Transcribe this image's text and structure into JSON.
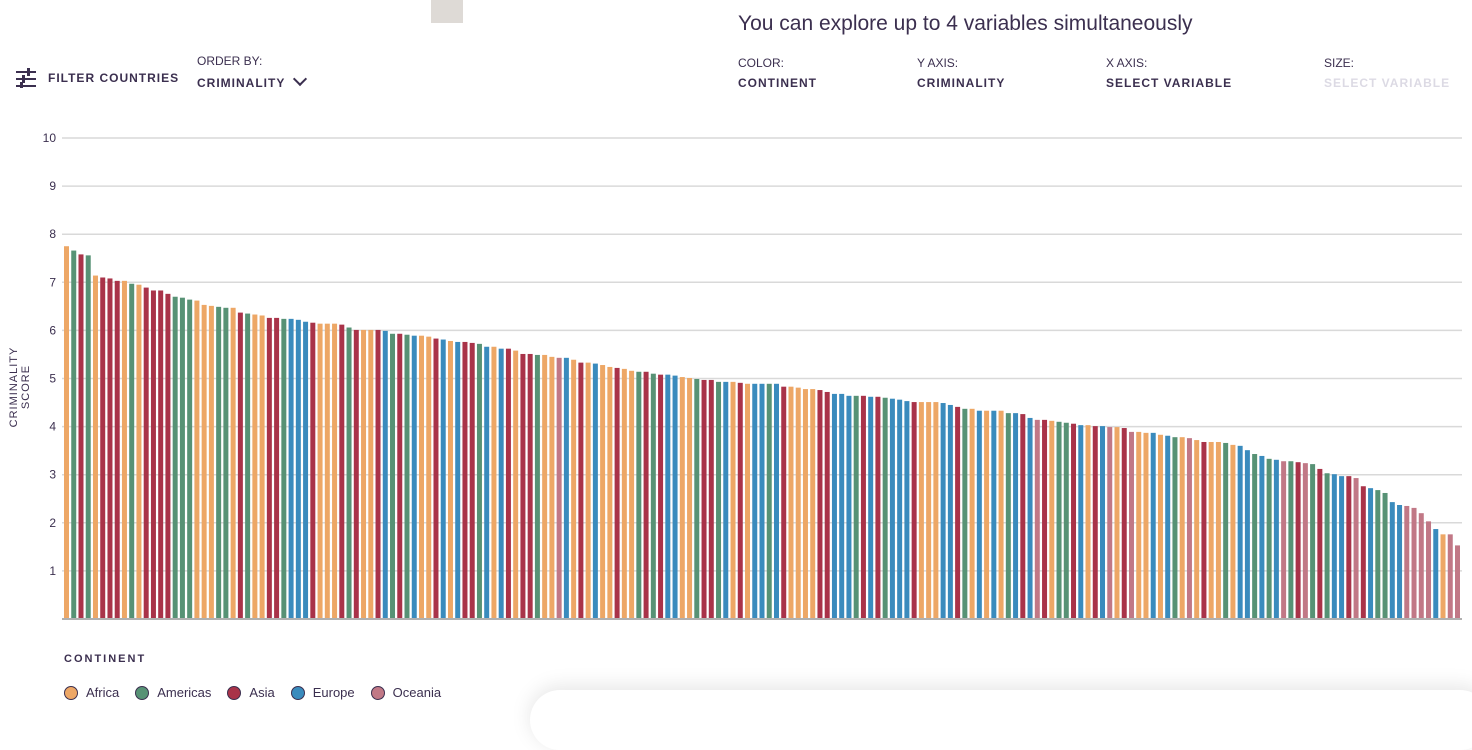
{
  "header": {
    "headline": "You can explore up to 4 variables simultaneously",
    "filter_label": "FILTER COUNTRIES",
    "order_by_label": "ORDER BY:",
    "order_by_value": "CRIMINALITY",
    "controls": [
      {
        "label": "COLOR:",
        "value": "CONTINENT",
        "disabled": false
      },
      {
        "label": "Y AXIS:",
        "value": "CRIMINALITY",
        "disabled": false
      },
      {
        "label": "X AXIS:",
        "value": "SELECT VARIABLE",
        "disabled": false
      },
      {
        "label": "SIZE:",
        "value": "SELECT VARIABLE",
        "disabled": true
      }
    ]
  },
  "chart_data": {
    "type": "bar",
    "ylabel": "CRIMINALITY SCORE",
    "ylim": [
      0,
      10
    ],
    "yticks": [
      "1",
      "2",
      "3",
      "4",
      "5",
      "6",
      "7",
      "8",
      "9",
      "10"
    ],
    "grid": true,
    "legend": {
      "title": "CONTINENT",
      "placement": "bottom-left",
      "entries": [
        {
          "name": "Africa",
          "color": "#EDA766"
        },
        {
          "name": "Americas",
          "color": "#579275"
        },
        {
          "name": "Asia",
          "color": "#A93349"
        },
        {
          "name": "Europe",
          "color": "#3A8BBD"
        },
        {
          "name": "Oceania",
          "color": "#C17886"
        }
      ]
    },
    "values": [
      7.75,
      7.66,
      7.58,
      7.56,
      7.14,
      7.1,
      7.08,
      7.03,
      7.03,
      6.97,
      6.95,
      6.89,
      6.83,
      6.83,
      6.76,
      6.7,
      6.68,
      6.64,
      6.62,
      6.53,
      6.51,
      6.49,
      6.47,
      6.47,
      6.37,
      6.35,
      6.33,
      6.31,
      6.26,
      6.26,
      6.24,
      6.24,
      6.22,
      6.18,
      6.16,
      6.14,
      6.14,
      6.14,
      6.12,
      6.06,
      6.01,
      6.01,
      6.01,
      6.01,
      5.99,
      5.93,
      5.93,
      5.91,
      5.89,
      5.89,
      5.87,
      5.83,
      5.81,
      5.78,
      5.76,
      5.76,
      5.74,
      5.72,
      5.66,
      5.66,
      5.62,
      5.62,
      5.58,
      5.51,
      5.51,
      5.49,
      5.49,
      5.45,
      5.43,
      5.43,
      5.39,
      5.33,
      5.33,
      5.31,
      5.28,
      5.24,
      5.22,
      5.2,
      5.16,
      5.14,
      5.14,
      5.1,
      5.08,
      5.08,
      5.06,
      5.03,
      5.01,
      4.99,
      4.97,
      4.97,
      4.93,
      4.93,
      4.93,
      4.91,
      4.89,
      4.89,
      4.89,
      4.89,
      4.89,
      4.83,
      4.83,
      4.81,
      4.78,
      4.78,
      4.76,
      4.72,
      4.68,
      4.68,
      4.64,
      4.64,
      4.64,
      4.62,
      4.62,
      4.6,
      4.58,
      4.56,
      4.53,
      4.51,
      4.51,
      4.51,
      4.51,
      4.49,
      4.45,
      4.41,
      4.37,
      4.37,
      4.33,
      4.33,
      4.33,
      4.33,
      4.28,
      4.28,
      4.26,
      4.18,
      4.14,
      4.14,
      4.12,
      4.1,
      4.08,
      4.06,
      4.03,
      4.03,
      4.01,
      4.01,
      3.99,
      3.99,
      3.97,
      3.89,
      3.89,
      3.87,
      3.87,
      3.83,
      3.81,
      3.78,
      3.78,
      3.76,
      3.72,
      3.68,
      3.68,
      3.68,
      3.66,
      3.62,
      3.6,
      3.51,
      3.43,
      3.39,
      3.33,
      3.31,
      3.28,
      3.28,
      3.26,
      3.24,
      3.22,
      3.12,
      3.03,
      3.01,
      2.97,
      2.97,
      2.93,
      2.76,
      2.72,
      2.68,
      2.62,
      2.43,
      2.37,
      2.35,
      2.31,
      2.2,
      2.03,
      1.87,
      1.76,
      1.76,
      1.53
    ],
    "continents": [
      "Africa",
      "Americas",
      "Asia",
      "Americas",
      "Africa",
      "Asia",
      "Asia",
      "Asia",
      "Africa",
      "Americas",
      "Africa",
      "Asia",
      "Asia",
      "Asia",
      "Asia",
      "Americas",
      "Americas",
      "Americas",
      "Africa",
      "Africa",
      "Africa",
      "Americas",
      "Americas",
      "Africa",
      "Asia",
      "Americas",
      "Africa",
      "Africa",
      "Asia",
      "Asia",
      "Americas",
      "Europe",
      "Europe",
      "Europe",
      "Asia",
      "Africa",
      "Africa",
      "Africa",
      "Asia",
      "Americas",
      "Asia",
      "Africa",
      "Africa",
      "Asia",
      "Europe",
      "Americas",
      "Asia",
      "Americas",
      "Europe",
      "Africa",
      "Africa",
      "Asia",
      "Europe",
      "Africa",
      "Europe",
      "Asia",
      "Asia",
      "Americas",
      "Europe",
      "Africa",
      "Europe",
      "Asia",
      "Africa",
      "Asia",
      "Asia",
      "Americas",
      "Africa",
      "Africa",
      "Oceania",
      "Europe",
      "Africa",
      "Asia",
      "Africa",
      "Europe",
      "Africa",
      "Africa",
      "Asia",
      "Africa",
      "Africa",
      "Americas",
      "Asia",
      "Americas",
      "Asia",
      "Europe",
      "Europe",
      "Africa",
      "Africa",
      "Americas",
      "Asia",
      "Asia",
      "Americas",
      "Europe",
      "Africa",
      "Asia",
      "Africa",
      "Europe",
      "Europe",
      "Americas",
      "Europe",
      "Asia",
      "Africa",
      "Africa",
      "Africa",
      "Africa",
      "Asia",
      "Asia",
      "Europe",
      "Europe",
      "Europe",
      "Americas",
      "Asia",
      "Europe",
      "Asia",
      "Americas",
      "Europe",
      "Europe",
      "Europe",
      "Asia",
      "Africa",
      "Africa",
      "Africa",
      "Europe",
      "Europe",
      "Asia",
      "Americas",
      "Africa",
      "Europe",
      "Africa",
      "Europe",
      "Africa",
      "Americas",
      "Europe",
      "Asia",
      "Europe",
      "Oceania",
      "Asia",
      "Africa",
      "Americas",
      "Americas",
      "Asia",
      "Europe",
      "Africa",
      "Asia",
      "Europe",
      "Oceania",
      "Africa",
      "Asia",
      "Oceania",
      "Africa",
      "Africa",
      "Europe",
      "Africa",
      "Europe",
      "Americas",
      "Africa",
      "Oceania",
      "Africa",
      "Asia",
      "Africa",
      "Africa",
      "Americas",
      "Africa",
      "Europe",
      "Europe",
      "Americas",
      "Europe",
      "Americas",
      "Europe",
      "Oceania",
      "Americas",
      "Asia",
      "Oceania",
      "Americas",
      "Asia",
      "Americas",
      "Europe",
      "Europe",
      "Asia",
      "Oceania",
      "Asia",
      "Europe",
      "Americas",
      "Americas",
      "Europe",
      "Europe",
      "Oceania",
      "Oceania",
      "Oceania",
      "Oceania",
      "Europe",
      "Africa",
      "Oceania",
      "Oceania"
    ]
  }
}
